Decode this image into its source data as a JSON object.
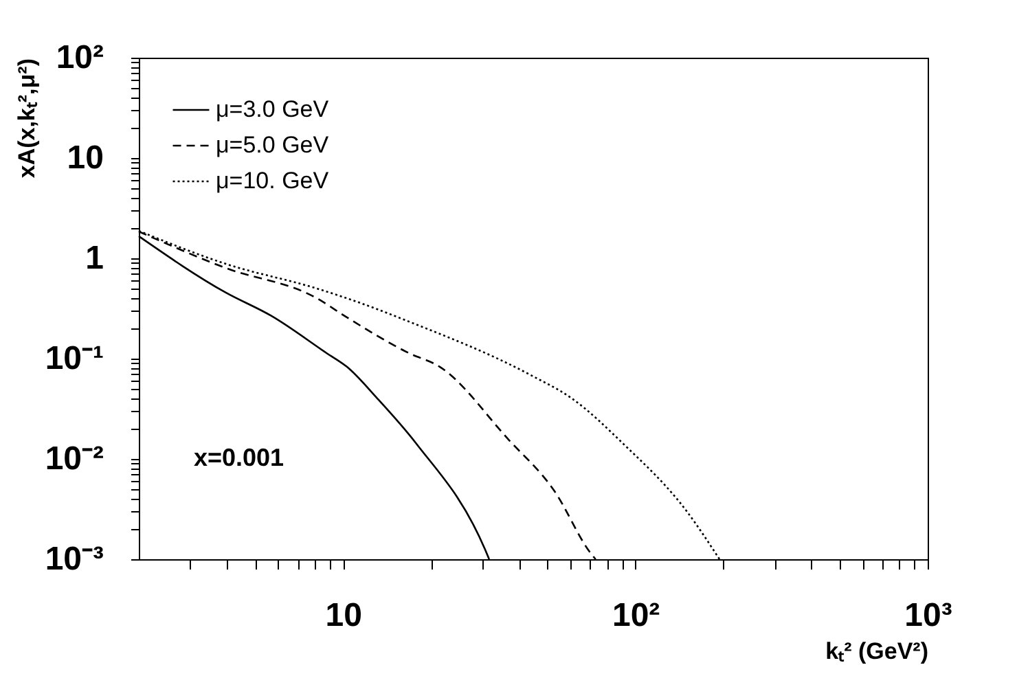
{
  "chart_data": {
    "type": "line",
    "xlabel": "kₜ² (GeV²)",
    "ylabel": "xA(x,kₜ²,μ²)",
    "log": "xy",
    "xlim": [
      2,
      1000
    ],
    "ylim": [
      0.001,
      100
    ],
    "xticks": [
      {
        "value": 3,
        "label": null
      },
      {
        "value": 4,
        "label": null
      },
      {
        "value": 5,
        "label": null
      },
      {
        "value": 6,
        "label": null
      },
      {
        "value": 7,
        "label": null
      },
      {
        "value": 8,
        "label": null
      },
      {
        "value": 9,
        "label": null
      },
      10,
      {
        "value": 20,
        "label": null
      },
      {
        "value": 30,
        "label": null
      },
      {
        "value": 40,
        "label": null
      },
      {
        "value": 50,
        "label": null
      },
      {
        "value": 60,
        "label": null
      },
      {
        "value": 70,
        "label": null
      },
      {
        "value": 80,
        "label": null
      },
      {
        "value": 90,
        "label": null
      },
      {
        "value": 100,
        "label": "10²"
      },
      {
        "value": 200,
        "label": null
      },
      {
        "value": 300,
        "label": null
      },
      {
        "value": 400,
        "label": null
      },
      {
        "value": 500,
        "label": null
      },
      {
        "value": 600,
        "label": null
      },
      {
        "value": 700,
        "label": null
      },
      {
        "value": 800,
        "label": null
      },
      {
        "value": 900,
        "label": null
      },
      {
        "value": 1000,
        "label": "10³"
      }
    ],
    "yticks": [
      {
        "value": 0.001,
        "label": "10⁻³"
      },
      {
        "value": 0.002,
        "label": null
      },
      {
        "value": 0.003,
        "label": null
      },
      {
        "value": 0.004,
        "label": null
      },
      {
        "value": 0.005,
        "label": null
      },
      {
        "value": 0.006,
        "label": null
      },
      {
        "value": 0.007,
        "label": null
      },
      {
        "value": 0.008,
        "label": null
      },
      {
        "value": 0.009,
        "label": null
      },
      {
        "value": 0.01,
        "label": "10⁻²"
      },
      {
        "value": 0.02,
        "label": null
      },
      {
        "value": 0.03,
        "label": null
      },
      {
        "value": 0.04,
        "label": null
      },
      {
        "value": 0.05,
        "label": null
      },
      {
        "value": 0.06,
        "label": null
      },
      {
        "value": 0.07,
        "label": null
      },
      {
        "value": 0.08,
        "label": null
      },
      {
        "value": 0.09,
        "label": null
      },
      {
        "value": 0.1,
        "label": "10⁻¹"
      },
      {
        "value": 0.2,
        "label": null
      },
      {
        "value": 0.3,
        "label": null
      },
      {
        "value": 0.4,
        "label": null
      },
      {
        "value": 0.5,
        "label": null
      },
      {
        "value": 0.6,
        "label": null
      },
      {
        "value": 0.7,
        "label": null
      },
      {
        "value": 0.8,
        "label": null
      },
      {
        "value": 0.9,
        "label": null
      },
      1,
      {
        "value": 2,
        "label": null
      },
      {
        "value": 3,
        "label": null
      },
      {
        "value": 4,
        "label": null
      },
      {
        "value": 5,
        "label": null
      },
      {
        "value": 6,
        "label": null
      },
      {
        "value": 7,
        "label": null
      },
      {
        "value": 8,
        "label": null
      },
      {
        "value": 9,
        "label": null
      },
      10,
      {
        "value": 20,
        "label": null
      },
      {
        "value": 30,
        "label": null
      },
      {
        "value": 40,
        "label": null
      },
      {
        "value": 50,
        "label": null
      },
      {
        "value": 60,
        "label": null
      },
      {
        "value": 70,
        "label": null
      },
      {
        "value": 80,
        "label": null
      },
      {
        "value": 90,
        "label": null
      },
      {
        "value": 100,
        "label": "10²"
      }
    ],
    "grid": false,
    "legend": "top left",
    "marker": "none",
    "annotations": [
      "x=0.001"
    ],
    "series": [
      {
        "name": "μ=3.0 GeV",
        "color": "#000000",
        "line_style": "solid",
        "x": [
          2,
          3.97,
          5.69,
          8.78,
          10.3,
          13.1,
          17.8,
          30.6,
          31.6
        ],
        "values": [
          1.66,
          0.455,
          0.266,
          0.1135,
          0.083,
          0.04,
          0.0142,
          0.00125,
          0.001
        ]
      },
      {
        "name": "μ=5.0 GeV",
        "color": "#000000",
        "line_style": "dashed",
        "x": [
          2,
          3.97,
          8.13,
          10.3,
          16.8,
          21.4,
          36.8,
          52.7,
          70.6,
          73.1
        ],
        "values": [
          1.85,
          0.8,
          0.4,
          0.258,
          0.1135,
          0.083,
          0.0156,
          0.00484,
          0.00113,
          0.001
        ]
      },
      {
        "name": "μ=10. GeV",
        "color": "#000000",
        "line_style": "dotted",
        "x": [
          2,
          3.97,
          8.13,
          10.3,
          16.8,
          43.8,
          60.7,
          90.8,
          151,
          194
        ],
        "values": [
          1.88,
          0.88,
          0.5,
          0.4,
          0.234,
          0.0686,
          0.04,
          0.0142,
          0.00292,
          0.001
        ]
      }
    ]
  }
}
